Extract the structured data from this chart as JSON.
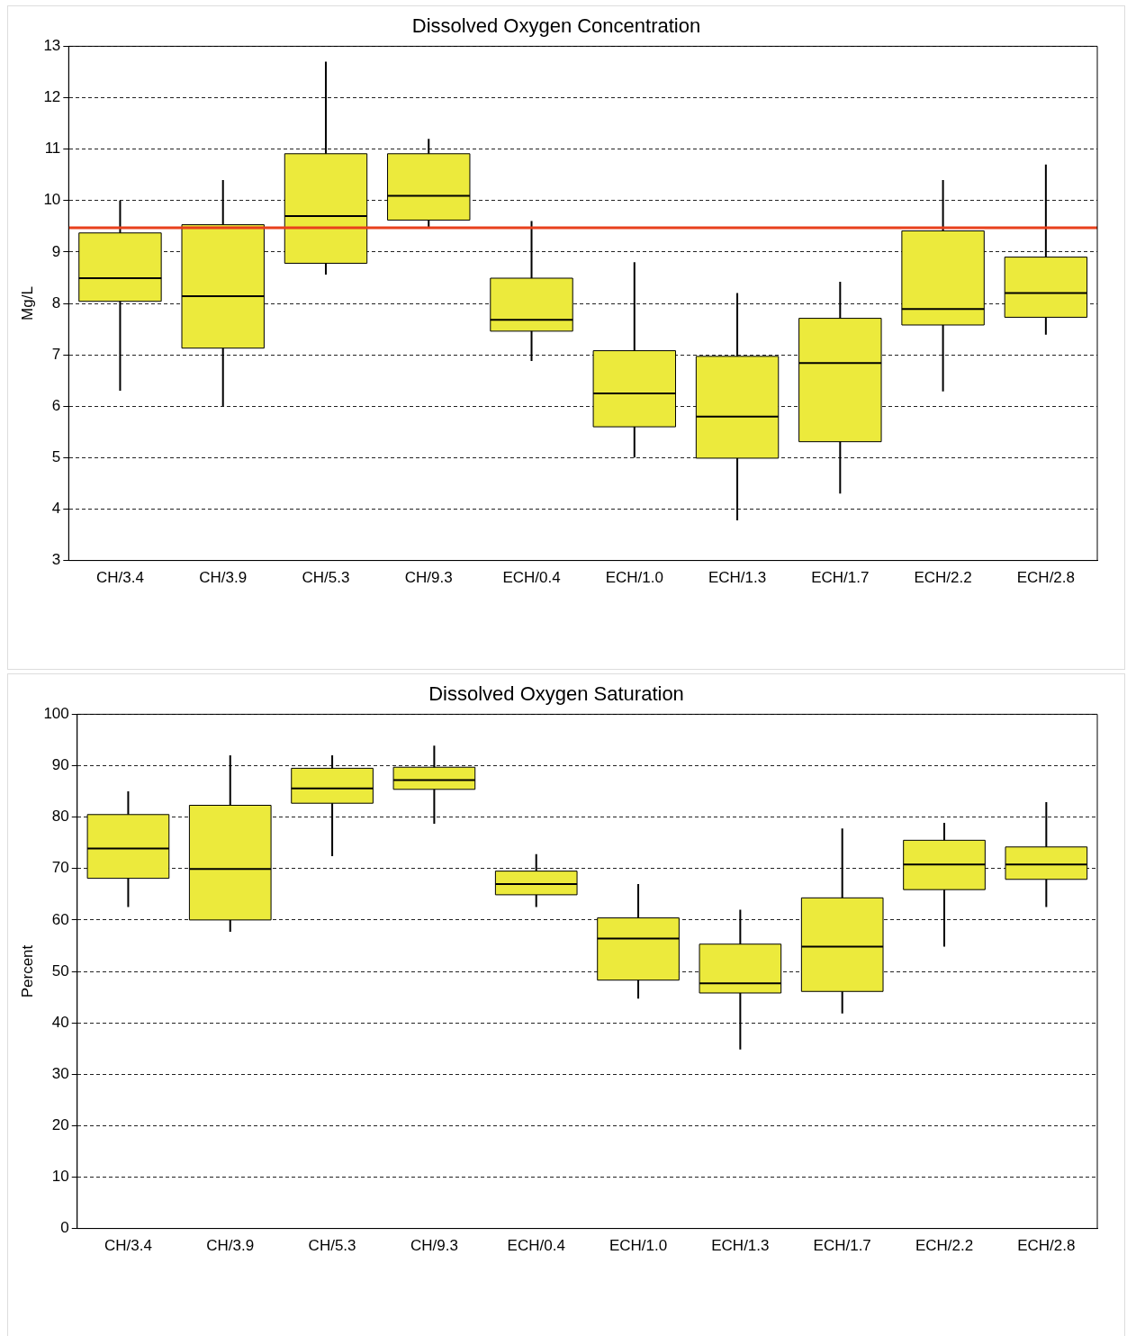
{
  "chart_data": [
    {
      "type": "box",
      "title": "Dissolved Oxygen Concentration",
      "ylabel": "Mg/L",
      "color": "#ecea3c",
      "categories": [
        "CH/3.4",
        "CH/3.9",
        "CH/5.3",
        "CH/9.3",
        "ECH/0.4",
        "ECH/1.0",
        "ECH/1.3",
        "ECH/1.7",
        "ECH/2.2",
        "ECH/2.8"
      ],
      "boxes": [
        {
          "low": 6.3,
          "q1": 8.04,
          "median": 8.49,
          "q3": 9.37,
          "high": 10.0
        },
        {
          "low": 6.0,
          "q1": 7.13,
          "median": 8.14,
          "q3": 9.53,
          "high": 10.4
        },
        {
          "low": 8.56,
          "q1": 8.78,
          "median": 9.7,
          "q3": 10.91,
          "high": 12.7
        },
        {
          "low": 9.48,
          "q1": 9.62,
          "median": 10.09,
          "q3": 10.91,
          "high": 11.2
        },
        {
          "low": 6.88,
          "q1": 7.46,
          "median": 7.68,
          "q3": 8.49,
          "high": 9.6
        },
        {
          "low": 5.0,
          "q1": 5.6,
          "median": 6.25,
          "q3": 7.08,
          "high": 8.8
        },
        {
          "low": 3.78,
          "q1": 4.99,
          "median": 5.8,
          "q3": 6.97,
          "high": 8.2
        },
        {
          "low": 4.3,
          "q1": 5.31,
          "median": 6.84,
          "q3": 7.71,
          "high": 8.42
        },
        {
          "low": 6.29,
          "q1": 7.58,
          "median": 7.89,
          "q3": 9.41,
          "high": 10.4
        },
        {
          "low": 7.39,
          "q1": 7.73,
          "median": 8.2,
          "q3": 8.9,
          "high": 10.7
        }
      ],
      "ylim": [
        3,
        13
      ],
      "yticks": [
        3,
        4,
        5,
        6,
        7,
        8,
        9,
        10,
        11,
        12,
        13
      ],
      "grid": "y",
      "legend": false,
      "ref_lines": [
        {
          "axis": "y",
          "value": 9.47,
          "color": "#e8401c"
        }
      ]
    },
    {
      "type": "box",
      "title": "Dissolved Oxygen Saturation",
      "ylabel": "Percent",
      "color": "#ecea3c",
      "categories": [
        "CH/3.4",
        "CH/3.9",
        "CH/5.3",
        "CH/9.3",
        "ECH/0.4",
        "ECH/1.0",
        "ECH/1.3",
        "ECH/1.7",
        "ECH/2.2",
        "ECH/2.8"
      ],
      "boxes": [
        {
          "low": 62.5,
          "q1": 68.1,
          "median": 73.9,
          "q3": 80.5,
          "high": 85
        },
        {
          "low": 57.7,
          "q1": 60,
          "median": 69.9,
          "q3": 82.3,
          "high": 92
        },
        {
          "low": 72.4,
          "q1": 82.7,
          "median": 85.6,
          "q3": 89.5,
          "high": 92
        },
        {
          "low": 78.7,
          "q1": 85.4,
          "median": 87.2,
          "q3": 89.7,
          "high": 93.9
        },
        {
          "low": 62.5,
          "q1": 64.9,
          "median": 67,
          "q3": 69.5,
          "high": 72.8
        },
        {
          "low": 44.7,
          "q1": 48.3,
          "median": 56.4,
          "q3": 60.4,
          "high": 67
        },
        {
          "low": 34.8,
          "q1": 45.8,
          "median": 47.7,
          "q3": 55.3,
          "high": 62
        },
        {
          "low": 41.8,
          "q1": 46.1,
          "median": 54.8,
          "q3": 64.3,
          "high": 77.8
        },
        {
          "low": 54.8,
          "q1": 65.9,
          "median": 70.8,
          "q3": 75.5,
          "high": 78.9
        },
        {
          "low": 62.5,
          "q1": 67.9,
          "median": 70.8,
          "q3": 74.2,
          "high": 82.9
        }
      ],
      "ylim": [
        0,
        100
      ],
      "yticks": [
        0,
        10,
        20,
        30,
        40,
        50,
        60,
        70,
        80,
        90,
        100
      ],
      "grid": "y",
      "legend": false
    }
  ]
}
